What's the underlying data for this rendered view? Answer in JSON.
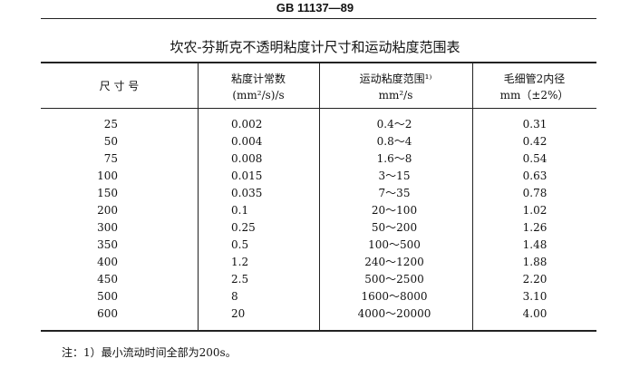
{
  "header": {
    "code": "GB 11137—89"
  },
  "title": "坎农-芬斯克不透明粘度计尺寸和运动粘度范围表",
  "table": {
    "columns": [
      [
        "尺 寸 号"
      ],
      [
        "粘度计常数",
        "(mm²/s)/s"
      ],
      [
        "运动粘度范围¹⁾",
        "mm²/s"
      ],
      [
        "毛细管2内径",
        "mm（±2%）"
      ]
    ],
    "rows": [
      [
        "25",
        "0.002",
        "0.4～2",
        "0.31"
      ],
      [
        "50",
        "0.004",
        "0.8～4",
        "0.42"
      ],
      [
        "75",
        "0.008",
        "1.6～8",
        "0.54"
      ],
      [
        "100",
        "0.015",
        "3～15",
        "0.63"
      ],
      [
        "150",
        "0.035",
        "7～35",
        "0.78"
      ],
      [
        "200",
        "0.1",
        "20～100",
        "1.02"
      ],
      [
        "300",
        "0.25",
        "50～200",
        "1.26"
      ],
      [
        "350",
        "0.5",
        "100～500",
        "1.48"
      ],
      [
        "400",
        "1.2",
        "240～1200",
        "1.88"
      ],
      [
        "450",
        "2.5",
        "500～2500",
        "2.20"
      ],
      [
        "500",
        "8",
        "1600～8000",
        "3.10"
      ],
      [
        "600",
        "20",
        "4000～20000",
        "4.00"
      ]
    ]
  },
  "note": "注：1）最小流动时间全部为200s。"
}
